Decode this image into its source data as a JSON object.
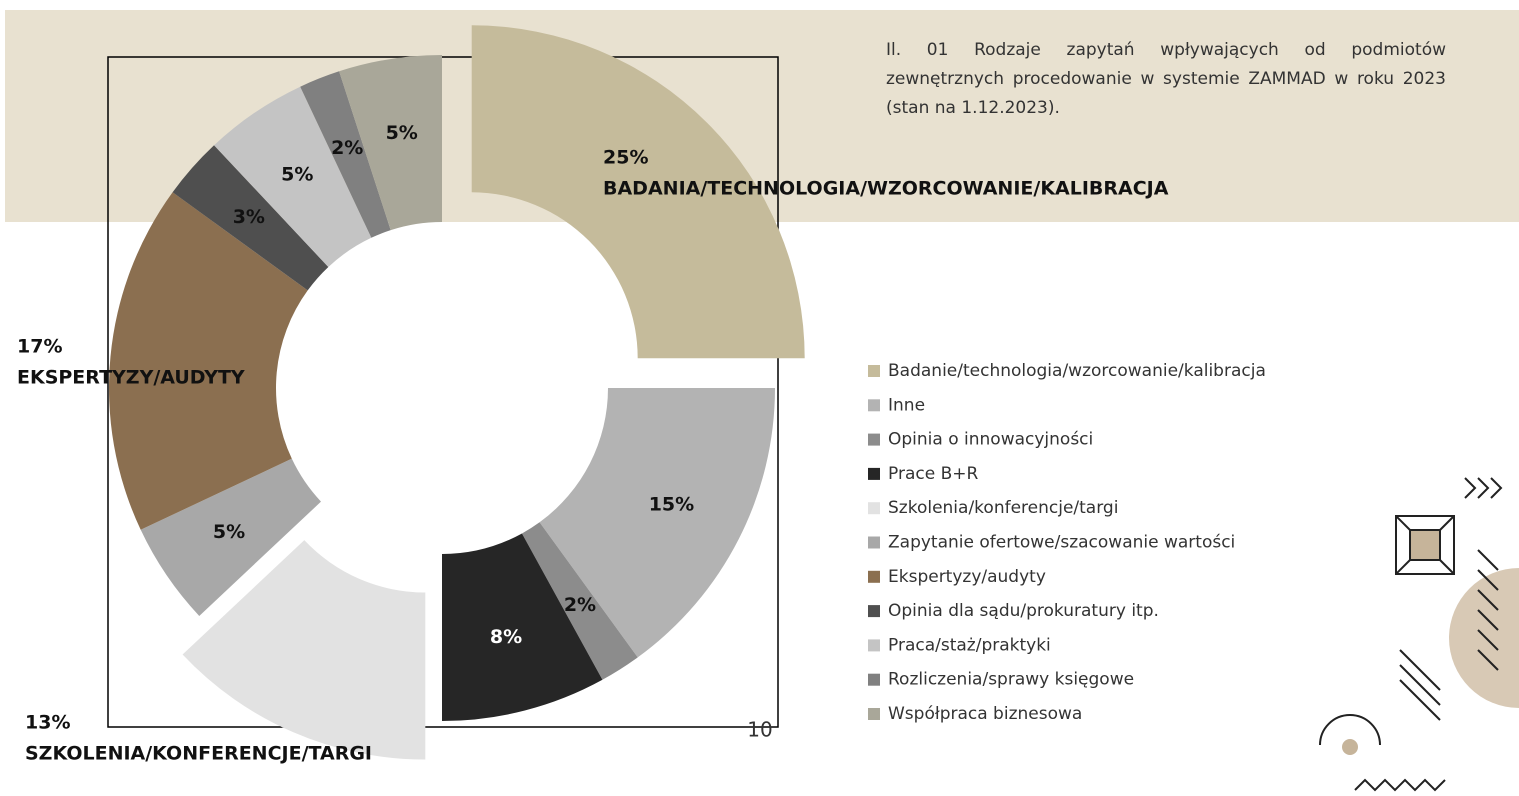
{
  "chart_data": {
    "type": "donut",
    "title": "Il. 01 Rodzaje zapytań wpływających od podmiotów zewnętrznych procedowanie w systemie ZAMMAD w roku 2023 (stan na 1.12.2023).",
    "categories": [
      "Badanie/technologia/wzorcowanie/kalibracja",
      "Inne",
      "Opinia o innowacyjności",
      "Prace B+R",
      "Szkolenia/konferencje/targi",
      "Zapytanie ofertowe/szacowanie wartości",
      "Ekspertyzy/audyty",
      "Opinia dla sądu/prokuratury itp.",
      "Praca/staż/praktyki",
      "Rozliczenia/sprawy księgowe",
      "Współpraca biznesowa"
    ],
    "values": [
      25,
      15,
      2,
      8,
      13,
      5,
      17,
      3,
      5,
      2,
      5
    ],
    "value_labels": [
      "25%",
      "15%",
      "2%",
      "8%",
      "13%",
      "5%",
      "17%",
      "3%",
      "5%",
      "2%",
      "5%"
    ],
    "category_labels": [
      "BADANIA/TECHNOLOGIA/WZORCOWANIE/KALIBRACJA",
      null,
      null,
      null,
      "SZKOLENIA/KONFERENCJE/TARGI",
      null,
      "EKSPERTYZY/AUDYTY",
      null,
      null,
      null,
      null
    ],
    "colors": [
      "#c5bb9b",
      "#b3b3b3",
      "#8c8c8c",
      "#262626",
      "#e2e2e2",
      "#a8a8a8",
      "#8b6f50",
      "#4f4f4f",
      "#c4c4c4",
      "#808080",
      "#a9a799"
    ],
    "exploded": [
      true,
      false,
      false,
      false,
      true,
      false,
      false,
      false,
      false,
      false,
      false
    ],
    "page_number": "10"
  }
}
